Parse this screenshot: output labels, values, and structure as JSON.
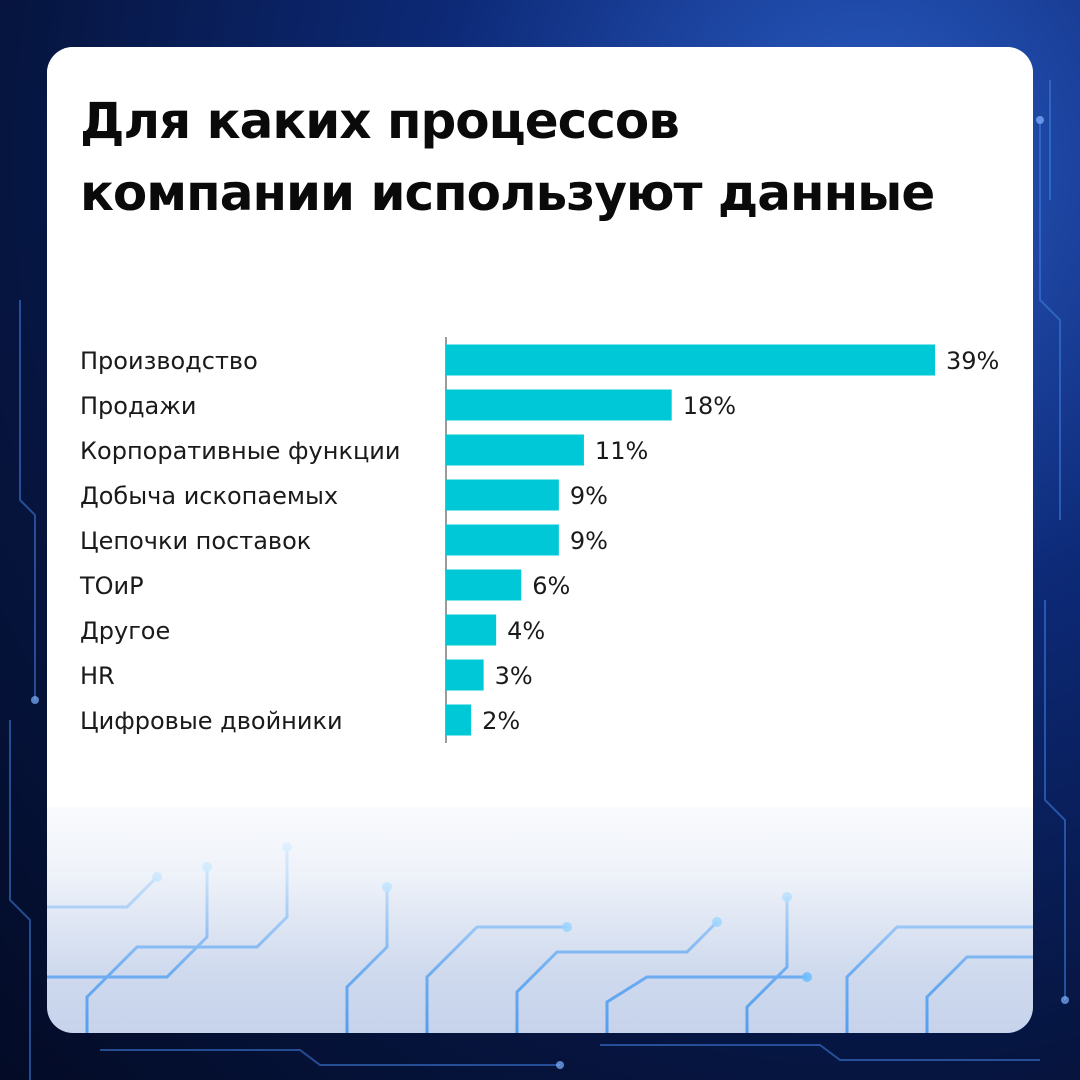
{
  "title_lines": [
    "Для каких процессов",
    "компании используют данные"
  ],
  "colors": {
    "bar": "#00c8d7",
    "axis": "#7a7a7a",
    "text": "#1a1a1a"
  },
  "chart_data": {
    "type": "bar",
    "orientation": "horizontal",
    "categories": [
      "Производство",
      "Продажи",
      "Корпоративные функции",
      "Добыча ископаемых",
      "Цепочки поставок",
      "ТОиР",
      "Другое",
      "HR",
      "Цифровые двойники"
    ],
    "values": [
      39,
      18,
      11,
      9,
      9,
      6,
      4,
      3,
      2
    ],
    "value_labels": [
      "39%",
      "18%",
      "11%",
      "9%",
      "9%",
      "6%",
      "4%",
      "3%",
      "2%"
    ],
    "xlim": [
      0,
      39
    ],
    "grid": false,
    "legend": "none"
  }
}
